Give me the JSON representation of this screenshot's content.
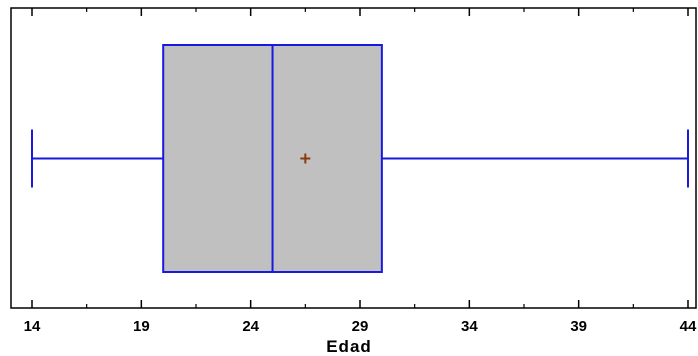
{
  "chart_data": {
    "type": "box",
    "xlabel": "Edad",
    "xlim": [
      13,
      44.5
    ],
    "xticks": [
      14,
      19,
      24,
      29,
      34,
      39,
      44
    ],
    "box": {
      "min": 14,
      "q1": 20,
      "median": 25,
      "mean": 26.5,
      "q3": 30,
      "max": 44
    },
    "grid": false,
    "colors": {
      "box_fill": "#c0c0c0",
      "box_stroke": "#1a1adf",
      "mean_marker": "#8b3a0e",
      "axis": "#000000"
    }
  }
}
